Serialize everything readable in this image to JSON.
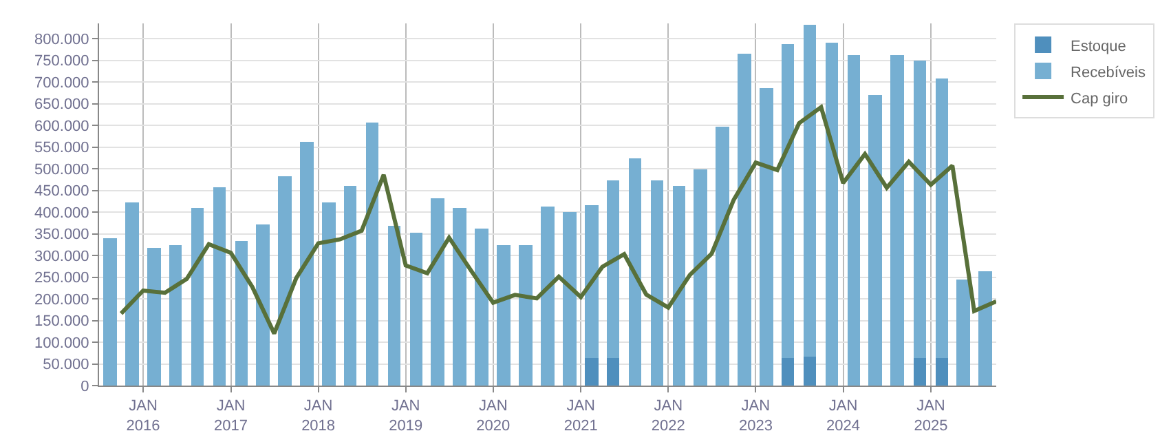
{
  "chart_data": {
    "type": "bar",
    "x": [
      "2015-08-15",
      "2015-11-15",
      "2016-02-15",
      "2016-05-15",
      "2016-08-15",
      "2016-11-15",
      "2017-02-15",
      "2017-05-15",
      "2017-08-15",
      "2017-11-15",
      "2018-02-15",
      "2018-05-15",
      "2018-08-15",
      "2018-11-15",
      "2019-02-15",
      "2019-05-15",
      "2019-08-15",
      "2019-11-15",
      "2020-02-15",
      "2020-05-15",
      "2020-08-15",
      "2020-11-15",
      "2021-02-15",
      "2021-05-15",
      "2021-08-15",
      "2021-11-15",
      "2022-02-15",
      "2022-05-15",
      "2022-08-15",
      "2022-11-15",
      "2023-02-15",
      "2023-05-15",
      "2023-08-15",
      "2023-11-15",
      "2024-02-15",
      "2024-05-15",
      "2024-08-15",
      "2024-11-15",
      "2025-02-15",
      "2025-05-15",
      "2025-08-15"
    ],
    "series": [
      {
        "name": "Recebíveis",
        "color": "#76afd2",
        "values": [
          340000,
          422000,
          318000,
          324000,
          409000,
          457000,
          333000,
          371000,
          482000,
          561000,
          422000,
          460000,
          605000,
          368000,
          352000,
          431000,
          409000,
          362000,
          324000,
          324000,
          412000,
          400000,
          415000,
          472000,
          523000,
          472000,
          460000,
          498000,
          597000,
          765000,
          686000,
          788000,
          832000,
          791000,
          762000,
          670000,
          762000,
          749000,
          708000,
          243000,
          262000
        ]
      },
      {
        "name": "Estoque",
        "color": "#4f8fbd",
        "values": [
          null,
          null,
          null,
          null,
          null,
          null,
          null,
          null,
          null,
          null,
          null,
          null,
          null,
          null,
          null,
          null,
          null,
          null,
          null,
          null,
          null,
          null,
          62000,
          62000,
          null,
          null,
          null,
          null,
          null,
          null,
          null,
          65000,
          68000,
          null,
          null,
          null,
          null,
          62000,
          62000,
          null,
          null
        ]
      },
      {
        "name": "Cap giro",
        "type": "line",
        "color": "#58703a",
        "x": [
          "2015-10-01",
          "2016-01-01",
          "2016-04-01",
          "2016-07-01",
          "2016-10-01",
          "2017-01-01",
          "2017-04-01",
          "2017-07-01",
          "2017-10-01",
          "2018-01-01",
          "2018-04-01",
          "2018-07-01",
          "2018-10-01",
          "2019-01-01",
          "2019-04-01",
          "2019-07-01",
          "2019-10-01",
          "2020-01-01",
          "2020-04-01",
          "2020-07-01",
          "2020-10-01",
          "2021-01-01",
          "2021-04-01",
          "2021-07-01",
          "2021-10-01",
          "2022-01-01",
          "2022-04-01",
          "2022-07-01",
          "2022-10-01",
          "2023-01-01",
          "2023-04-01",
          "2023-07-01",
          "2023-10-01",
          "2024-01-01",
          "2024-04-01",
          "2024-07-01",
          "2024-10-01",
          "2025-01-01",
          "2025-04-01",
          "2025-07-01",
          "2025-10-01"
        ],
        "values": [
          166000,
          219000,
          214000,
          246000,
          326000,
          306000,
          227000,
          120000,
          248000,
          328000,
          337000,
          357000,
          486000,
          277000,
          259000,
          341000,
          265000,
          191000,
          209000,
          201000,
          251000,
          204000,
          274000,
          303000,
          210000,
          180000,
          255000,
          304000,
          428000,
          514000,
          497000,
          605000,
          642000,
          467000,
          534000,
          456000,
          516000,
          463000,
          507000,
          172000,
          194000
        ]
      }
    ],
    "xlim": [
      "2015-07-01",
      "2025-10-01"
    ],
    "xticks": [
      {
        "value": "2016-01-01",
        "label": "JAN\n2016"
      },
      {
        "value": "2017-01-01",
        "label": "JAN\n2017"
      },
      {
        "value": "2018-01-01",
        "label": "JAN\n2018"
      },
      {
        "value": "2019-01-01",
        "label": "JAN\n2019"
      },
      {
        "value": "2020-01-01",
        "label": "JAN\n2020"
      },
      {
        "value": "2021-01-01",
        "label": "JAN\n2021"
      },
      {
        "value": "2022-01-01",
        "label": "JAN\n2022"
      },
      {
        "value": "2023-01-01",
        "label": "JAN\n2023"
      },
      {
        "value": "2024-01-01",
        "label": "JAN\n2024"
      },
      {
        "value": "2025-01-01",
        "label": "JAN\n2025"
      }
    ],
    "ylim": [
      0,
      835000
    ],
    "yticks": [
      0,
      {
        "value": 50000,
        "label": "50.000"
      },
      {
        "value": 100000,
        "label": "100.000"
      },
      {
        "value": 150000,
        "label": "150.000"
      },
      {
        "value": 200000,
        "label": "200.000"
      },
      {
        "value": 250000,
        "label": "250.000"
      },
      {
        "value": 300000,
        "label": "300.000"
      },
      {
        "value": 350000,
        "label": "350.000"
      },
      {
        "value": 400000,
        "label": "400.000"
      },
      {
        "value": 450000,
        "label": "450.000"
      },
      {
        "value": 500000,
        "label": "500.000"
      },
      {
        "value": 550000,
        "label": "550.000"
      },
      {
        "value": 600000,
        "label": "600.000"
      },
      {
        "value": 650000,
        "label": "650.000"
      },
      {
        "value": 700000,
        "label": "700.000"
      },
      {
        "value": 750000,
        "label": "750.000"
      },
      {
        "value": 800000,
        "label": "800.000"
      }
    ],
    "grid": true,
    "legend": "top right",
    "marker": "none",
    "line_style": "solid"
  }
}
